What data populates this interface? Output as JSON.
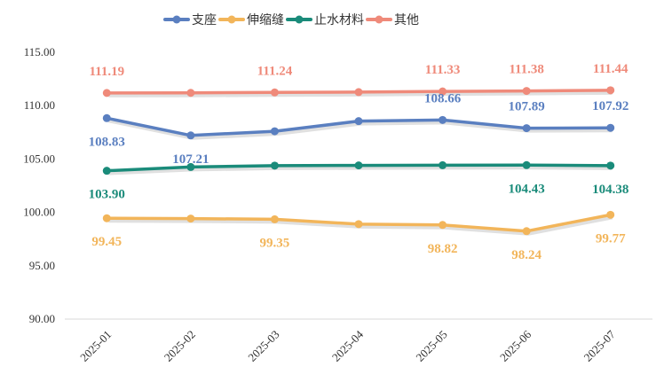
{
  "chart_data": {
    "type": "line",
    "categories": [
      "2025-01",
      "2025-02",
      "2025-03",
      "2025-04",
      "2025-05",
      "2025-06",
      "2025-07"
    ],
    "ylim": [
      90,
      115
    ],
    "yticks": [
      "90.00",
      "95.00",
      "100.00",
      "105.00",
      "110.00",
      "115.00"
    ],
    "legend_position": "top",
    "grid": false,
    "series": [
      {
        "name": "支座",
        "color": "#5a7fc0",
        "values": [
          108.83,
          107.21,
          107.6,
          108.55,
          108.66,
          107.89,
          107.92
        ],
        "labels": [
          "108.83",
          "107.21",
          "",
          "",
          "108.66",
          "107.89",
          "107.92"
        ],
        "label_side": [
          "below",
          "below",
          "",
          "",
          "above",
          "above",
          "above"
        ]
      },
      {
        "name": "伸缩缝",
        "color": "#f2b55a",
        "values": [
          99.45,
          99.42,
          99.35,
          98.9,
          98.82,
          98.24,
          99.77
        ],
        "labels": [
          "99.45",
          "",
          "99.35",
          "",
          "98.82",
          "98.24",
          "99.77"
        ],
        "label_side": [
          "below",
          "",
          "below",
          "",
          "below",
          "below",
          "below"
        ]
      },
      {
        "name": "止水材料",
        "color": "#1a8b7a",
        "values": [
          103.9,
          104.25,
          104.38,
          104.4,
          104.42,
          104.43,
          104.38
        ],
        "labels": [
          "103.90",
          "",
          "",
          "",
          "",
          "104.43",
          "104.38"
        ],
        "label_side": [
          "below",
          "",
          "",
          "",
          "",
          "below",
          "below"
        ]
      },
      {
        "name": "其他",
        "color": "#ef8a7a",
        "values": [
          111.19,
          111.2,
          111.24,
          111.27,
          111.33,
          111.38,
          111.44
        ],
        "labels": [
          "111.19",
          "",
          "111.24",
          "",
          "111.33",
          "111.38",
          "111.44"
        ],
        "label_side": [
          "above",
          "",
          "above",
          "",
          "above",
          "above",
          "above"
        ]
      }
    ]
  }
}
